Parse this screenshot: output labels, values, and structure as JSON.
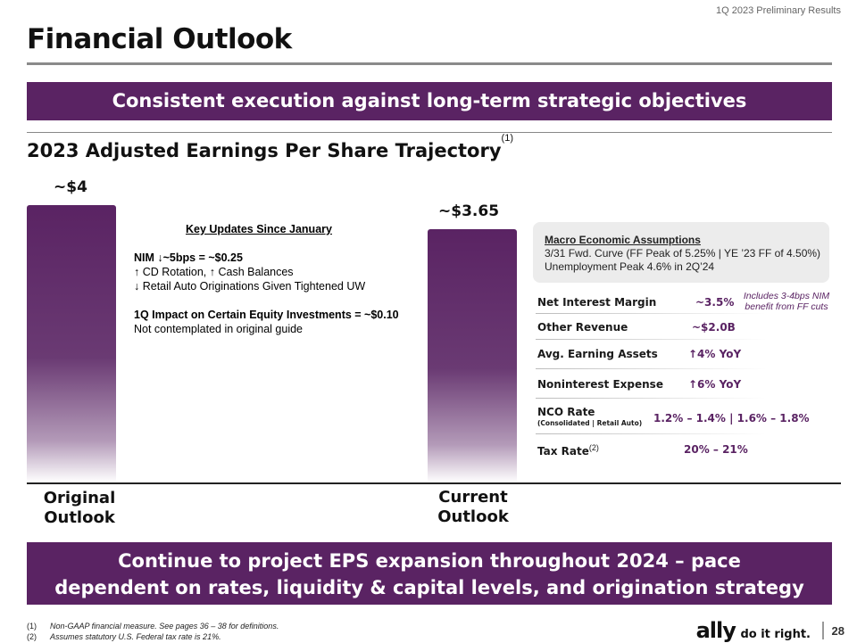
{
  "header": {
    "top_right": "1Q 2023 Preliminary Results",
    "title": "Financial Outlook"
  },
  "banner_top": "Consistent execution against long-term strategic objectives",
  "subtitle": {
    "text": "2023 Adjusted Earnings Per Share Trajectory",
    "footnote_ref": "(1)"
  },
  "chart_data": {
    "type": "bar",
    "categories": [
      "Original Outlook",
      "Current Outlook"
    ],
    "values": [
      4.0,
      3.65
    ],
    "value_labels": [
      "~$4",
      "~$3.65"
    ],
    "legend": "none",
    "grid": false
  },
  "categories_display": {
    "original": [
      "Original",
      "Outlook"
    ],
    "current": [
      "Current",
      "Outlook"
    ]
  },
  "key_updates": {
    "title": "Key Updates Since January",
    "line1": "NIM ↓~5bps = ~$0.25",
    "line2": "↑ CD Rotation, ↑ Cash Balances",
    "line3": "↓ Retail Auto Originations Given Tightened UW",
    "line4": "1Q Impact on Certain Equity Investments = ~$0.10",
    "line5": "Not contemplated in original guide"
  },
  "macro": {
    "title": "Macro Economic Assumptions",
    "line1": "3/31 Fwd. Curve (FF Peak of 5.25% | YE ’23 FF of 4.50%)",
    "line2": "Unemployment Peak 4.6% in 2Q’24"
  },
  "assumptions": [
    {
      "label": "Net Interest Margin",
      "value": "~3.5%"
    },
    {
      "label": "Other Revenue",
      "value": "~$2.0B"
    },
    {
      "label": "Avg. Earning Assets",
      "value": "↑4% YoY"
    },
    {
      "label": "Noninterest Expense",
      "value": "↑6% YoY"
    },
    {
      "label": "NCO Rate",
      "sublabel": "(Consolidated | Retail Auto)",
      "value": "1.2% – 1.4% | 1.6% – 1.8%"
    },
    {
      "label": "Tax Rate",
      "footnote_ref": "(2)",
      "value": "20% – 21%"
    }
  ],
  "nim_note": "Includes 3-4bps NIM benefit from FF cuts",
  "banner_bottom": {
    "line1": "Continue to project EPS expansion throughout 2024 – pace",
    "line2": "dependent on rates, liquidity & capital levels, and origination strategy"
  },
  "footnotes": [
    {
      "num": "(1)",
      "text": "Non-GAAP financial measure. See pages 36 – 38 for definitions."
    },
    {
      "num": "(2)",
      "text": "Assumes statutory U.S. Federal tax rate is 21%."
    }
  ],
  "logo": {
    "brand": "ally",
    "tagline": "do it right."
  },
  "page_number": "28",
  "colors": {
    "brand_purple": "#5a2363",
    "rule_gray": "#8a8a8a"
  }
}
